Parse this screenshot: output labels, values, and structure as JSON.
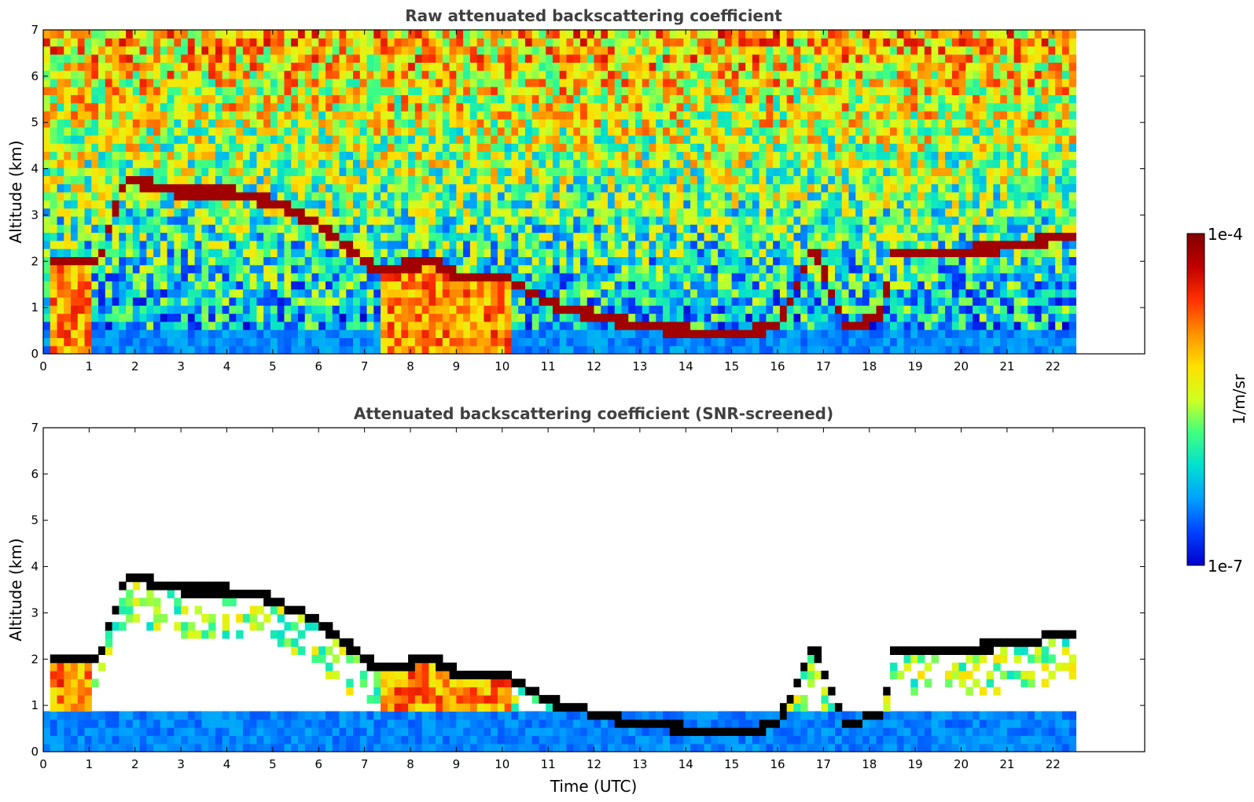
{
  "chart_data": [
    {
      "type": "heatmap",
      "title": "Raw attenuated backscattering coefficient",
      "xlabel": "",
      "ylabel": "Altitude (km)",
      "xlim": [
        0,
        24
      ],
      "ylim": [
        0,
        7
      ],
      "x_ticks": [
        "0",
        "1",
        "2",
        "3",
        "4",
        "5",
        "6",
        "7",
        "8",
        "9",
        "10",
        "11",
        "12",
        "13",
        "14",
        "15",
        "16",
        "17",
        "18",
        "19",
        "20",
        "21",
        "22"
      ],
      "y_ticks": [
        "0",
        "1",
        "2",
        "3",
        "4",
        "5",
        "6",
        "7"
      ],
      "data_end_time": 22.5,
      "grid": false,
      "screened": false,
      "cloud_layer_altitude_km": [
        {
          "x": 0.2,
          "y": 2.0
        },
        {
          "x": 1.2,
          "y": 2.0
        },
        {
          "x": 1.8,
          "y": 3.8
        },
        {
          "x": 3.0,
          "y": 3.5
        },
        {
          "x": 4.0,
          "y": 3.5
        },
        {
          "x": 5.0,
          "y": 3.3
        },
        {
          "x": 6.0,
          "y": 2.8
        },
        {
          "x": 7.3,
          "y": 1.8
        },
        {
          "x": 8.5,
          "y": 2.0
        },
        {
          "x": 9.0,
          "y": 1.7
        },
        {
          "x": 10.0,
          "y": 1.7
        },
        {
          "x": 11.0,
          "y": 1.1
        },
        {
          "x": 12.5,
          "y": 0.7
        },
        {
          "x": 14.0,
          "y": 0.5
        },
        {
          "x": 15.0,
          "y": 0.4
        },
        {
          "x": 16.0,
          "y": 0.6
        },
        {
          "x": 16.8,
          "y": 2.3
        },
        {
          "x": 17.5,
          "y": 0.5
        },
        {
          "x": 18.3,
          "y": 0.9
        },
        {
          "x": 18.5,
          "y": 2.2
        },
        {
          "x": 20.0,
          "y": 2.2
        },
        {
          "x": 21.5,
          "y": 2.4
        },
        {
          "x": 22.5,
          "y": 2.6
        }
      ]
    },
    {
      "type": "heatmap",
      "title": "Attenuated backscattering coefficient (SNR-screened)",
      "xlabel": "Time (UTC)",
      "ylabel": "Altitude (km)",
      "xlim": [
        0,
        24
      ],
      "ylim": [
        0,
        7
      ],
      "x_ticks": [
        "0",
        "1",
        "2",
        "3",
        "4",
        "5",
        "6",
        "7",
        "8",
        "9",
        "10",
        "11",
        "12",
        "13",
        "14",
        "15",
        "16",
        "17",
        "18",
        "19",
        "20",
        "21",
        "22"
      ],
      "y_ticks": [
        "0",
        "1",
        "2",
        "3",
        "4",
        "5",
        "6",
        "7"
      ],
      "data_end_time": 22.5,
      "grid": false,
      "screened": true
    }
  ],
  "colorbar": {
    "label": "1/m/sr",
    "max_label": "1e-4",
    "min_label": "1e-7",
    "colormap": [
      "#0000cc",
      "#0040ff",
      "#00a0ff",
      "#00e0d0",
      "#40ff80",
      "#d0ff20",
      "#ffe000",
      "#ff9000",
      "#ff3000",
      "#c00000",
      "#800000"
    ]
  }
}
